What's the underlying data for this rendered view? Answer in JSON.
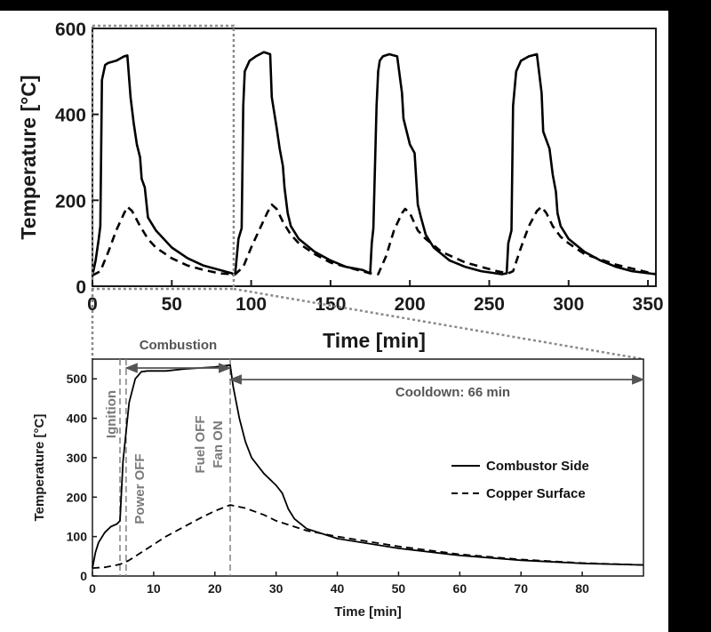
{
  "chart_data": [
    {
      "type": "line",
      "panel": "overview",
      "title": "",
      "xlabel": "Time [min]",
      "ylabel": "Temperature [°C]",
      "xlim": [
        0,
        355
      ],
      "ylim": [
        0,
        600
      ],
      "xticks": [
        0,
        50,
        100,
        150,
        200,
        250,
        300,
        350
      ],
      "yticks": [
        0,
        200,
        400,
        600
      ],
      "grid": false,
      "legend": "none",
      "series": [
        {
          "name": "",
          "style": "solid",
          "x": [
            0,
            2,
            4,
            5,
            6,
            8,
            10,
            15,
            20,
            22,
            24,
            26,
            28,
            30,
            31,
            33,
            35,
            40,
            50,
            60,
            70,
            80,
            88,
            89,
            90,
            92,
            94,
            95,
            96,
            99,
            103,
            108,
            112,
            113,
            116,
            118,
            120,
            121,
            123,
            125,
            130,
            140,
            150,
            160,
            170,
            175,
            176,
            177,
            179,
            180,
            181,
            183,
            187,
            192,
            195,
            196,
            200,
            203,
            204,
            205,
            207,
            210,
            215,
            225,
            235,
            245,
            258,
            261,
            262,
            264,
            265,
            267,
            270,
            275,
            280,
            283,
            284,
            288,
            290,
            292,
            293,
            295,
            300,
            310,
            320,
            330,
            340,
            355
          ],
          "values": [
            25,
            60,
            110,
            140,
            480,
            515,
            520,
            525,
            535,
            537,
            440,
            380,
            330,
            300,
            250,
            230,
            160,
            130,
            90,
            65,
            48,
            38,
            30,
            25,
            30,
            110,
            135,
            420,
            500,
            525,
            535,
            545,
            540,
            440,
            370,
            320,
            280,
            230,
            170,
            140,
            110,
            80,
            60,
            45,
            38,
            30,
            100,
            135,
            420,
            500,
            525,
            535,
            540,
            535,
            450,
            390,
            330,
            310,
            250,
            190,
            160,
            120,
            90,
            60,
            45,
            35,
            28,
            30,
            100,
            130,
            420,
            500,
            525,
            535,
            540,
            450,
            360,
            320,
            260,
            220,
            170,
            140,
            110,
            80,
            60,
            45,
            35,
            28
          ]
        },
        {
          "name": "",
          "style": "dashed",
          "x": [
            0,
            5,
            10,
            15,
            20,
            22,
            25,
            30,
            35,
            40,
            50,
            60,
            70,
            80,
            88,
            90,
            95,
            100,
            105,
            110,
            113,
            116,
            120,
            125,
            130,
            140,
            150,
            160,
            175,
            180,
            185,
            190,
            195,
            197,
            200,
            205,
            210,
            220,
            235,
            255,
            262,
            265,
            270,
            275,
            280,
            283,
            286,
            290,
            295,
            300,
            310,
            330,
            355
          ],
          "values": [
            25,
            35,
            80,
            130,
            170,
            185,
            175,
            140,
            110,
            90,
            65,
            48,
            38,
            30,
            28,
            28,
            45,
            90,
            130,
            170,
            190,
            180,
            150,
            120,
            100,
            75,
            55,
            45,
            30,
            28,
            70,
            130,
            170,
            180,
            170,
            130,
            110,
            80,
            55,
            35,
            30,
            35,
            90,
            140,
            175,
            185,
            170,
            140,
            115,
            100,
            75,
            50,
            28
          ]
        }
      ]
    },
    {
      "type": "line",
      "panel": "zoom",
      "title": "",
      "xlabel": "Time [min]",
      "ylabel": "Temperature [°C]",
      "xlim": [
        0,
        90
      ],
      "ylim": [
        0,
        550
      ],
      "xticks": [
        0,
        10,
        20,
        30,
        40,
        50,
        60,
        70,
        80
      ],
      "yticks": [
        0,
        100,
        200,
        300,
        400,
        500
      ],
      "grid": false,
      "legend": "right",
      "series": [
        {
          "name": "Combustor Side",
          "style": "solid",
          "x": [
            0,
            0.5,
            1,
            2,
            3,
            4,
            4.5,
            5,
            6,
            7,
            8,
            9,
            10,
            12,
            15,
            20,
            22.5,
            23,
            24,
            25,
            26,
            28,
            30,
            31,
            32,
            33,
            35,
            40,
            50,
            60,
            70,
            80,
            90
          ],
          "values": [
            20,
            60,
            85,
            110,
            125,
            132,
            140,
            290,
            440,
            500,
            518,
            520,
            520,
            520,
            525,
            530,
            535,
            480,
            400,
            340,
            300,
            260,
            230,
            210,
            170,
            145,
            120,
            95,
            70,
            52,
            40,
            32,
            28
          ]
        },
        {
          "name": "Copper Surface",
          "style": "dashed",
          "x": [
            0,
            2,
            4,
            5,
            6,
            8,
            10,
            12,
            15,
            18,
            20,
            22.5,
            25,
            28,
            30,
            35,
            40,
            50,
            60,
            70,
            80,
            90
          ],
          "values": [
            20,
            22,
            28,
            32,
            40,
            60,
            80,
            100,
            125,
            150,
            165,
            180,
            172,
            155,
            140,
            115,
            100,
            75,
            55,
            42,
            33,
            28
          ]
        }
      ]
    }
  ],
  "annotations": {
    "combustion": "Combustion",
    "cooldown": "Cooldown: 66 min",
    "ignition": "Ignition",
    "power_off": "Power OFF",
    "fuel_off": "Fuel OFF",
    "fan_on": "Fan ON",
    "event_times": [
      4.5,
      5.5,
      22.5
    ]
  },
  "colors": {
    "annotation": "#7a7a7a",
    "line": "#000000",
    "highlight_box": "#8a8a8a"
  }
}
